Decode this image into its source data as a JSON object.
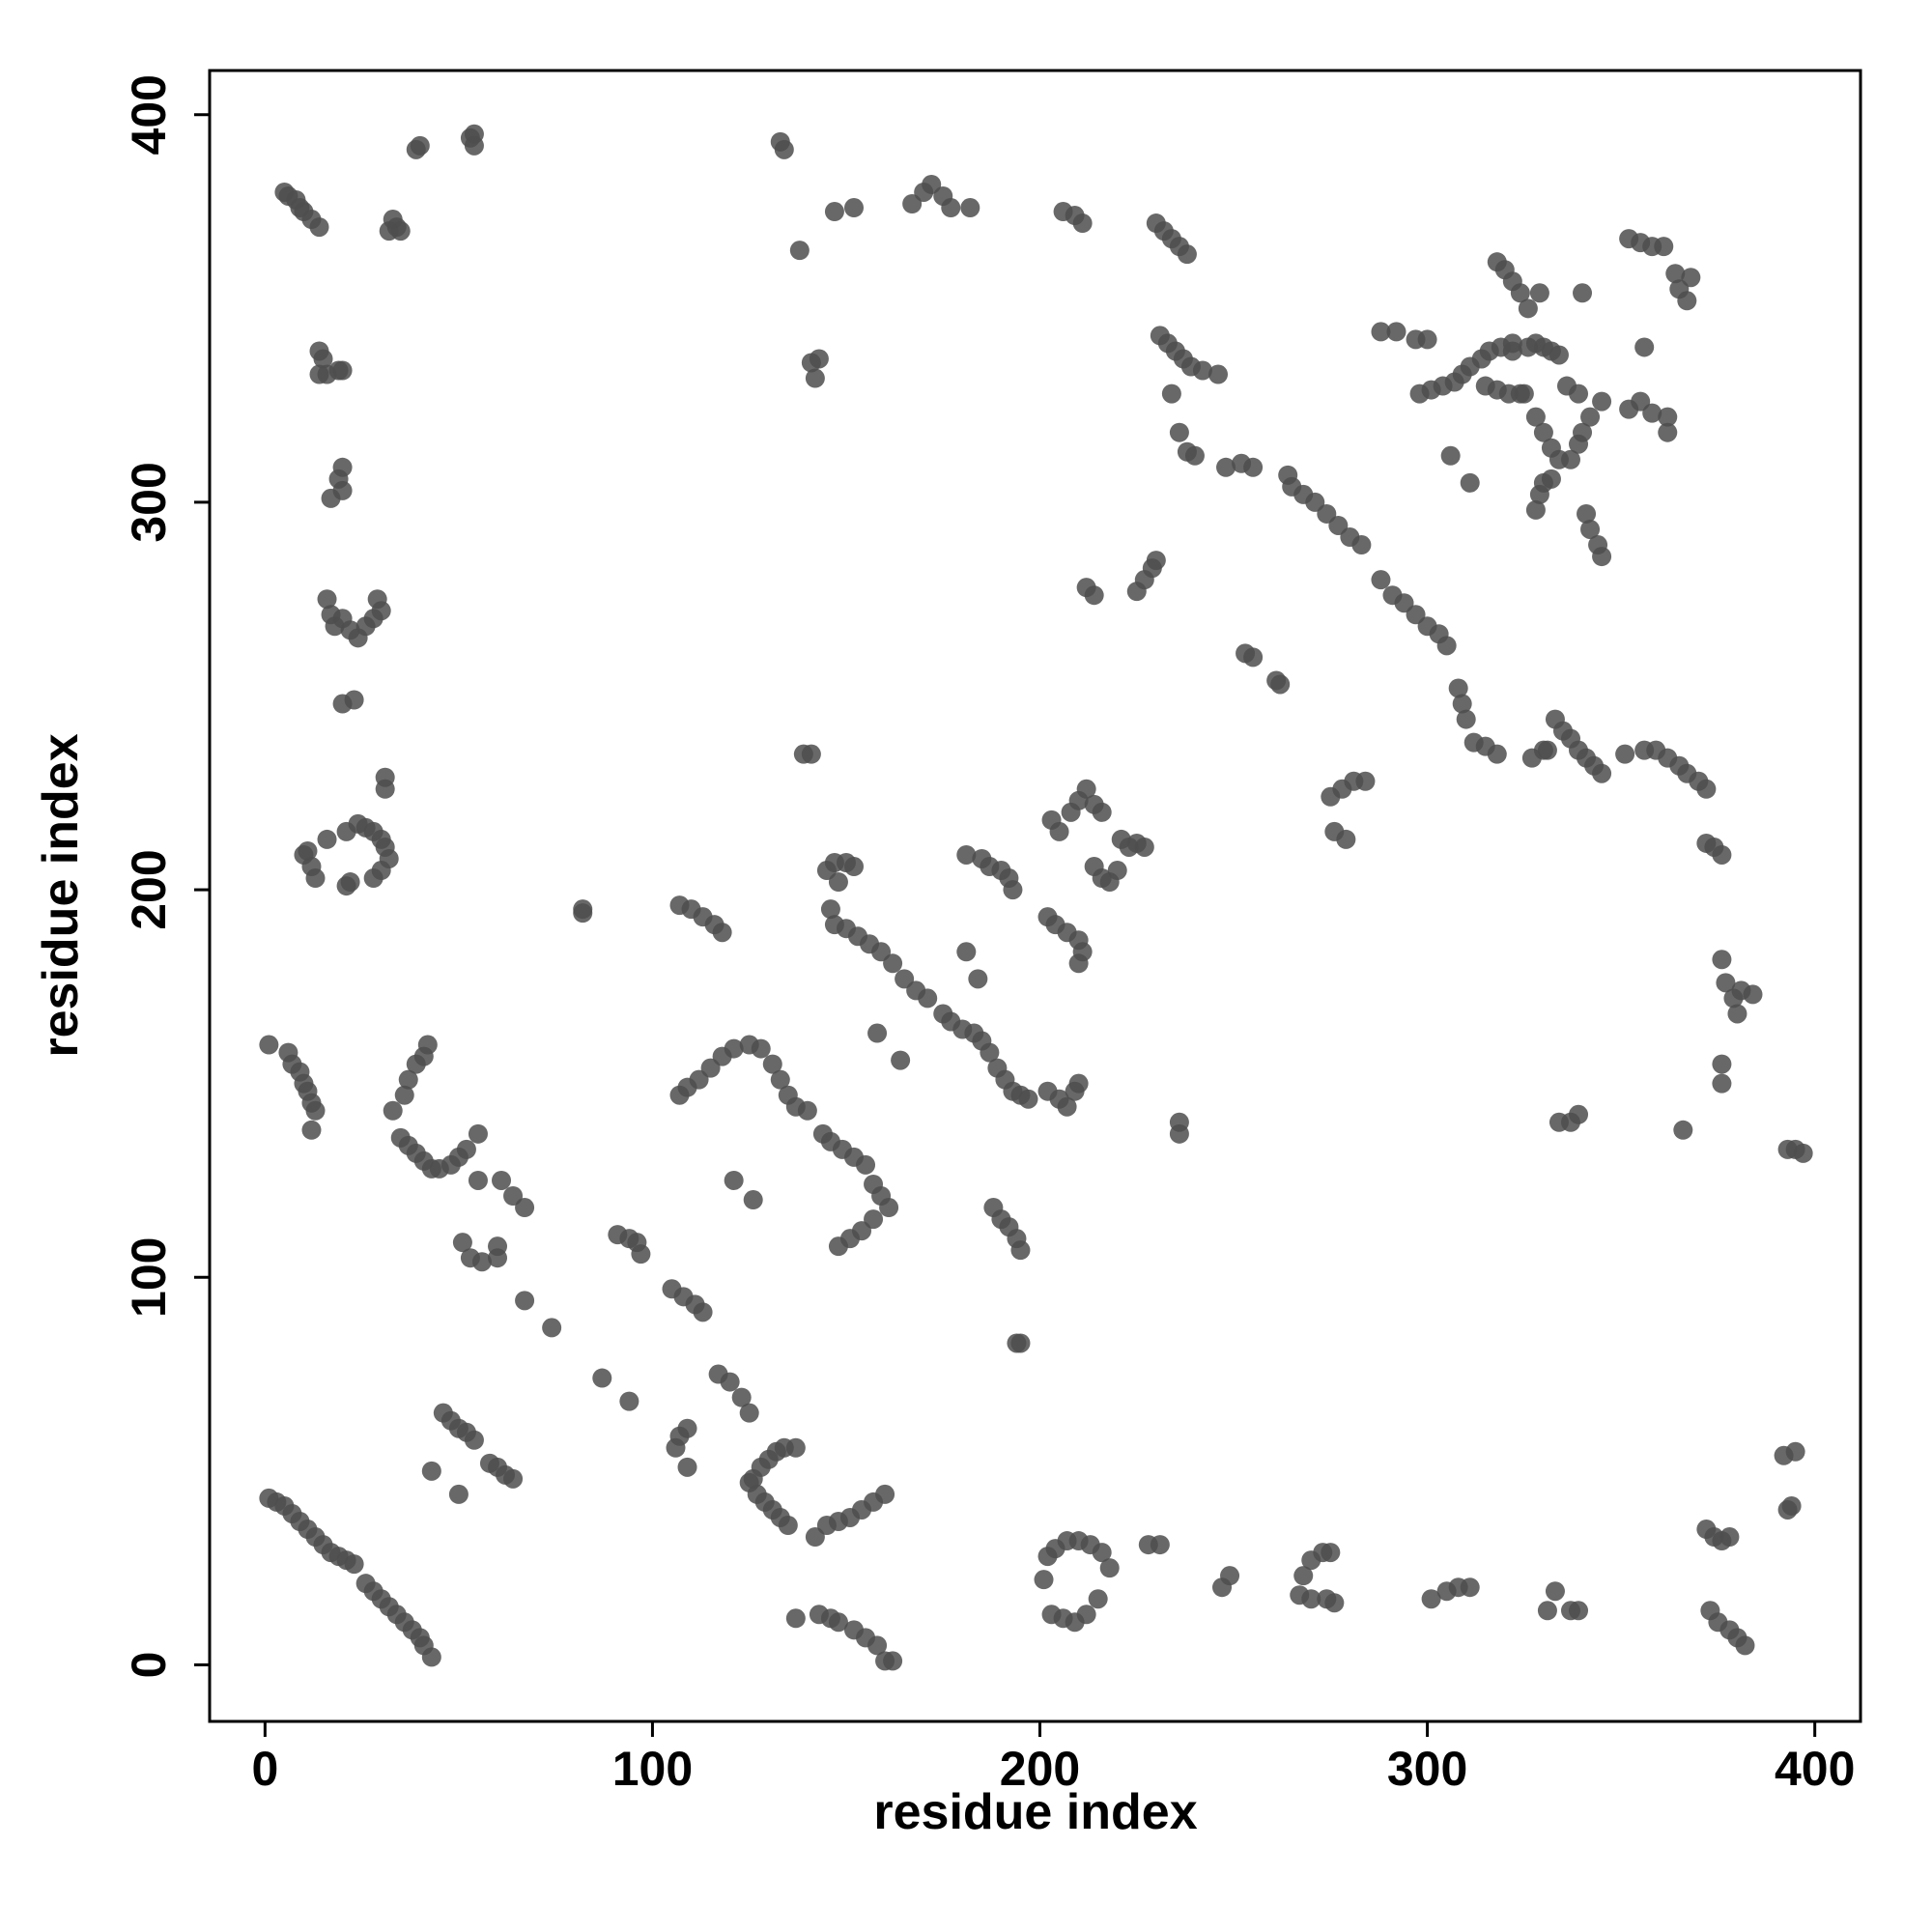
{
  "chart_data": {
    "type": "scatter",
    "xlabel": "residue index",
    "ylabel": "residue index",
    "xlim": [
      -14.3,
      411.8
    ],
    "ylim": [
      -14.6,
      411.4
    ],
    "xticks": [
      0,
      100,
      200,
      300,
      400
    ],
    "yticks": [
      0,
      100,
      200,
      300,
      400
    ],
    "color": "#4d4d4d",
    "x": [
      1,
      3,
      5,
      7,
      9,
      11,
      13,
      15,
      17,
      19,
      21,
      23,
      26,
      28,
      30,
      32,
      34,
      36,
      38,
      40,
      41,
      43,
      5,
      6,
      8,
      9,
      10,
      12,
      14,
      33,
      34,
      32,
      35,
      39,
      40,
      53,
      54,
      54,
      14,
      15,
      14,
      16,
      19,
      20,
      19,
      20,
      17,
      20,
      16,
      17,
      18,
      20,
      22,
      24,
      26,
      28,
      29,
      30,
      20,
      23,
      31,
      31,
      10,
      12,
      13,
      11,
      16,
      21,
      24,
      26,
      28,
      30,
      31,
      32,
      30,
      28,
      22,
      21,
      1,
      6,
      7,
      9,
      10,
      11,
      12,
      13,
      12,
      33,
      36,
      37,
      39,
      41,
      42,
      35,
      37,
      39,
      41,
      43,
      45,
      48,
      50,
      52,
      55,
      55,
      61,
      64,
      67,
      51,
      53,
      56,
      60,
      60,
      67,
      74,
      82,
      82,
      87,
      94,
      46,
      48,
      50,
      52,
      54,
      43,
      50,
      58,
      60,
      62,
      64,
      91,
      94,
      96,
      97,
      105,
      108,
      111,
      113,
      106,
      107,
      109,
      109,
      117,
      120,
      123,
      125,
      125,
      127,
      129,
      131,
      133,
      135,
      126,
      128,
      130,
      132,
      134,
      137,
      142,
      145,
      148,
      151,
      154,
      157,
      160,
      137,
      143,
      146,
      148,
      152,
      155,
      158,
      160,
      162,
      107,
      110,
      113,
      116,
      118,
      107,
      109,
      112,
      115,
      118,
      121,
      125,
      128,
      131,
      133,
      135,
      137,
      140,
      144,
      146,
      149,
      152,
      155,
      157,
      159,
      161,
      157,
      154,
      151,
      148,
      121,
      126,
      133,
      134,
      138,
      141,
      142,
      143,
      139,
      141,
      147,
      152,
      167,
      170,
      172,
      175,
      177,
      182,
      145,
      147,
      150,
      152,
      148,
      146,
      147,
      150,
      153,
      156,
      159,
      162,
      165,
      168,
      171,
      158,
      164,
      175,
      177,
      180,
      183,
      185,
      187,
      189,
      191,
      193,
      195,
      197,
      181,
      184,
      181,
      185,
      187,
      190,
      192,
      193,
      188,
      190,
      192,
      194,
      195,
      194,
      195,
      202,
      204,
      207,
      210,
      211,
      210,
      202,
      205,
      207,
      209,
      210,
      203,
      205,
      208,
      210,
      212,
      214,
      216,
      214,
      216,
      218,
      220,
      221,
      223,
      225,
      227,
      206,
      209,
      211,
      212,
      214,
      225,
      227,
      229,
      230,
      236,
      236,
      201,
      202,
      204,
      207,
      210,
      213,
      216,
      218,
      215,
      212,
      209,
      206,
      203,
      228,
      231,
      247,
      249,
      230,
      232,
      234,
      236,
      238,
      231,
      233,
      235,
      237,
      239,
      242,
      246,
      234,
      236,
      238,
      240,
      248,
      252,
      255,
      253,
      255,
      261,
      262,
      264,
      265,
      268,
      271,
      274,
      277,
      280,
      283,
      268,
      270,
      273,
      275,
      267,
      270,
      274,
      276,
      275,
      278,
      281,
      284,
      276,
      279,
      288,
      292,
      297,
      300,
      288,
      291,
      294,
      297,
      300,
      303,
      305,
      308,
      309,
      310,
      312,
      315,
      318,
      298,
      301,
      304,
      307,
      309,
      311,
      314,
      316,
      319,
      322,
      315,
      318,
      321,
      324,
      318,
      320,
      322,
      324,
      326,
      329,
      328,
      330,
      332,
      334,
      325,
      328,
      330,
      332,
      334,
      337,
      339,
      340,
      342,
      345,
      339,
      336,
      328,
      329,
      330,
      332,
      322,
      326,
      306,
      311,
      340,
      341,
      342,
      344,
      345,
      331,
      333,
      335,
      337,
      339,
      341,
      343,
      345,
      327,
      330,
      334,
      337,
      339,
      331,
      333,
      337,
      339,
      301,
      305,
      308,
      311,
      352,
      355,
      358,
      361,
      352,
      355,
      358,
      362,
      362,
      356,
      364,
      365,
      367,
      368,
      351,
      356,
      359,
      362,
      365,
      367,
      370,
      372,
      372,
      374,
      376,
      376,
      377,
      379,
      380,
      381,
      384,
      366,
      376,
      376,
      372,
      374,
      376,
      378,
      373,
      375,
      378,
      380,
      382,
      393,
      395,
      397,
      392,
      395,
      393,
      394
    ],
    "y": [
      43,
      42,
      41,
      39,
      37,
      35,
      33,
      31,
      29,
      28,
      27,
      26,
      21,
      19,
      17,
      15,
      13,
      11,
      9,
      7,
      5,
      2,
      380,
      379,
      378,
      376,
      375,
      373,
      371,
      373,
      371,
      370,
      370,
      391,
      392,
      394,
      395,
      392,
      339,
      337,
      333,
      333,
      334,
      334,
      306,
      309,
      301,
      303,
      275,
      271,
      268,
      270,
      267,
      265,
      268,
      270,
      275,
      272,
      248,
      249,
      229,
      226,
      209,
      206,
      203,
      210,
      213,
      215,
      217,
      216,
      215,
      213,
      211,
      208,
      205,
      203,
      202,
      201,
      160,
      158,
      155,
      153,
      150,
      148,
      145,
      143,
      138,
      143,
      147,
      151,
      155,
      157,
      160,
      136,
      134,
      132,
      130,
      128,
      128,
      129,
      131,
      133,
      137,
      125,
      125,
      121,
      118,
      109,
      105,
      104,
      105,
      108,
      94,
      87,
      194,
      195,
      74,
      68,
      65,
      63,
      61,
      60,
      58,
      50,
      44,
      52,
      51,
      49,
      48,
      111,
      110,
      109,
      106,
      97,
      95,
      93,
      91,
      56,
      59,
      61,
      51,
      75,
      73,
      69,
      65,
      47,
      44,
      42,
      40,
      38,
      36,
      48,
      51,
      53,
      55,
      56,
      56,
      33,
      36,
      37,
      38,
      40,
      42,
      44,
      12,
      13,
      12,
      11,
      9,
      7,
      5,
      1,
      1,
      196,
      195,
      193,
      191,
      189,
      147,
      149,
      151,
      154,
      157,
      159,
      160,
      159,
      155,
      151,
      147,
      144,
      143,
      137,
      135,
      133,
      131,
      129,
      124,
      121,
      118,
      115,
      112,
      110,
      108,
      125,
      120,
      393,
      391,
      365,
      336,
      332,
      337,
      235,
      235,
      375,
      376,
      377,
      380,
      382,
      379,
      376,
      376,
      205,
      207,
      207,
      206,
      202,
      195,
      191,
      190,
      188,
      186,
      184,
      181,
      177,
      174,
      172,
      163,
      156,
      168,
      166,
      164,
      163,
      161,
      158,
      154,
      151,
      148,
      147,
      146,
      184,
      177,
      209,
      208,
      206,
      205,
      203,
      200,
      118,
      115,
      113,
      110,
      107,
      83,
      83,
      193,
      191,
      189,
      187,
      184,
      181,
      148,
      146,
      144,
      148,
      150,
      218,
      215,
      220,
      223,
      226,
      222,
      220,
      206,
      203,
      202,
      205,
      213,
      211,
      212,
      211,
      375,
      374,
      372,
      278,
      276,
      277,
      280,
      283,
      285,
      140,
      137,
      22,
      28,
      30,
      32,
      32,
      31,
      29,
      25,
      17,
      13,
      11,
      12,
      13,
      31,
      31,
      20,
      23,
      372,
      370,
      368,
      366,
      364,
      343,
      341,
      339,
      337,
      335,
      334,
      333,
      328,
      318,
      313,
      312,
      309,
      310,
      309,
      261,
      260,
      254,
      253,
      307,
      304,
      302,
      300,
      297,
      294,
      291,
      289,
      23,
      27,
      29,
      29,
      18,
      17,
      17,
      16,
      224,
      226,
      228,
      228,
      215,
      213,
      344,
      344,
      342,
      342,
      280,
      276,
      274,
      271,
      268,
      266,
      263,
      252,
      248,
      244,
      238,
      237,
      235,
      328,
      329,
      330,
      331,
      333,
      335,
      337,
      339,
      340,
      339,
      330,
      329,
      328,
      328,
      362,
      360,
      357,
      354,
      350,
      354,
      341,
      340,
      339,
      338,
      328,
      322,
      318,
      314,
      311,
      311,
      315,
      318,
      322,
      326,
      328,
      330,
      298,
      302,
      305,
      306,
      341,
      340,
      312,
      305,
      354,
      297,
      293,
      289,
      286,
      236,
      244,
      241,
      239,
      236,
      234,
      232,
      230,
      234,
      236,
      140,
      140,
      142,
      14,
      19,
      14,
      14,
      17,
      19,
      20,
      20,
      368,
      367,
      366,
      366,
      324,
      326,
      323,
      322,
      318,
      340,
      359,
      355,
      352,
      358,
      235,
      236,
      236,
      234,
      232,
      230,
      228,
      226,
      212,
      211,
      209,
      182,
      176,
      172,
      168,
      174,
      173,
      138,
      155,
      150,
      35,
      33,
      32,
      33,
      14,
      11,
      9,
      7,
      5,
      133,
      133,
      132,
      54,
      55,
      40,
      41
    ]
  }
}
